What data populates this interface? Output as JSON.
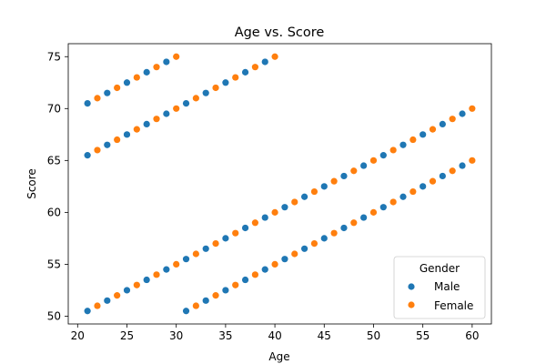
{
  "chart_data": {
    "type": "scatter",
    "title": "Age vs. Score",
    "xlabel": "Age",
    "ylabel": "Score",
    "xlim": [
      19.05,
      61.95
    ],
    "ylim": [
      49.25,
      76.25
    ],
    "xticks": [
      20,
      25,
      30,
      35,
      40,
      45,
      50,
      55,
      60
    ],
    "yticks": [
      50,
      55,
      60,
      65,
      70,
      75
    ],
    "grid": false,
    "legend": {
      "title": "Gender",
      "placement": "lower-right",
      "entries": [
        {
          "name": "Male",
          "color": "#1f77b4"
        },
        {
          "name": "Female",
          "color": "#ff7f0e"
        }
      ]
    },
    "series": [
      {
        "name": "Male",
        "color": "#1f77b4",
        "points": [
          [
            21,
            70.5
          ],
          [
            23,
            71.5
          ],
          [
            25,
            72.5
          ],
          [
            27,
            73.5
          ],
          [
            29,
            74.5
          ],
          [
            21,
            65.5
          ],
          [
            23,
            66.5
          ],
          [
            25,
            67.5
          ],
          [
            27,
            68.5
          ],
          [
            29,
            69.5
          ],
          [
            31,
            70.5
          ],
          [
            33,
            71.5
          ],
          [
            35,
            72.5
          ],
          [
            37,
            73.5
          ],
          [
            39,
            74.5
          ],
          [
            21,
            50.5
          ],
          [
            23,
            51.5
          ],
          [
            25,
            52.5
          ],
          [
            27,
            53.5
          ],
          [
            29,
            54.5
          ],
          [
            31,
            55.5
          ],
          [
            33,
            56.5
          ],
          [
            35,
            57.5
          ],
          [
            37,
            58.5
          ],
          [
            39,
            59.5
          ],
          [
            41,
            60.5
          ],
          [
            43,
            61.5
          ],
          [
            45,
            62.5
          ],
          [
            47,
            63.5
          ],
          [
            49,
            64.5
          ],
          [
            51,
            65.5
          ],
          [
            53,
            66.5
          ],
          [
            55,
            67.5
          ],
          [
            57,
            68.5
          ],
          [
            59,
            69.5
          ],
          [
            31,
            50.5
          ],
          [
            33,
            51.5
          ],
          [
            35,
            52.5
          ],
          [
            37,
            53.5
          ],
          [
            39,
            54.5
          ],
          [
            41,
            55.5
          ],
          [
            43,
            56.5
          ],
          [
            45,
            57.5
          ],
          [
            47,
            58.5
          ],
          [
            49,
            59.5
          ],
          [
            51,
            60.5
          ],
          [
            53,
            61.5
          ],
          [
            55,
            62.5
          ],
          [
            57,
            63.5
          ],
          [
            59,
            64.5
          ]
        ]
      },
      {
        "name": "Female",
        "color": "#ff7f0e",
        "points": [
          [
            22,
            71
          ],
          [
            24,
            72
          ],
          [
            26,
            73
          ],
          [
            28,
            74
          ],
          [
            30,
            75
          ],
          [
            22,
            66
          ],
          [
            24,
            67
          ],
          [
            26,
            68
          ],
          [
            28,
            69
          ],
          [
            30,
            70
          ],
          [
            32,
            71
          ],
          [
            34,
            72
          ],
          [
            36,
            73
          ],
          [
            38,
            74
          ],
          [
            40,
            75
          ],
          [
            22,
            51
          ],
          [
            24,
            52
          ],
          [
            26,
            53
          ],
          [
            28,
            54
          ],
          [
            30,
            55
          ],
          [
            32,
            56
          ],
          [
            34,
            57
          ],
          [
            36,
            58
          ],
          [
            38,
            59
          ],
          [
            40,
            60
          ],
          [
            42,
            61
          ],
          [
            44,
            62
          ],
          [
            46,
            63
          ],
          [
            48,
            64
          ],
          [
            50,
            65
          ],
          [
            52,
            66
          ],
          [
            54,
            67
          ],
          [
            56,
            68
          ],
          [
            58,
            69
          ],
          [
            60,
            70
          ],
          [
            32,
            51
          ],
          [
            34,
            52
          ],
          [
            36,
            53
          ],
          [
            38,
            54
          ],
          [
            40,
            55
          ],
          [
            42,
            56
          ],
          [
            44,
            57
          ],
          [
            46,
            58
          ],
          [
            48,
            59
          ],
          [
            50,
            60
          ],
          [
            52,
            61
          ],
          [
            54,
            62
          ],
          [
            56,
            63
          ],
          [
            58,
            64
          ],
          [
            60,
            65
          ]
        ]
      }
    ]
  }
}
